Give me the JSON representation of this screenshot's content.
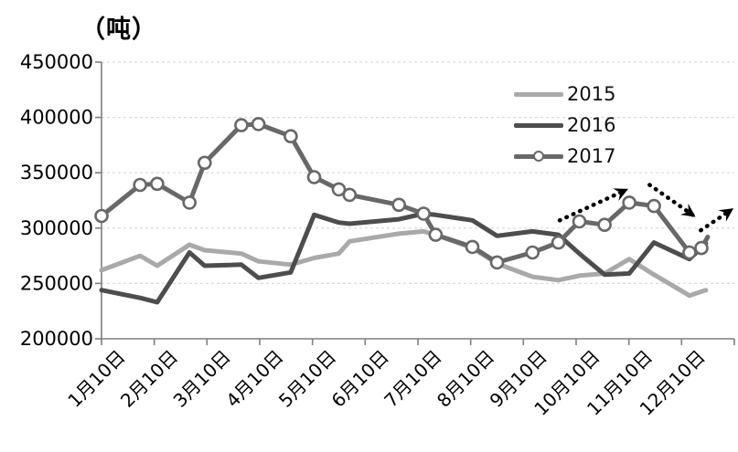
{
  "chart_data": {
    "type": "line",
    "title": "（吨）",
    "y_axis": {
      "min": 200000,
      "max": 450000,
      "ticks": [
        200000,
        250000,
        300000,
        350000,
        400000,
        450000
      ],
      "unit_label": "（吨）"
    },
    "x_axis": {
      "tick_labels": [
        "1月10日",
        "2月10日",
        "3月10日",
        "4月10日",
        "5月10日",
        "6月10日",
        "7月10日",
        "8月10日",
        "9月10日",
        "10月10日",
        "11月10日",
        "12月10日"
      ]
    },
    "grid": "horizontal-dashed",
    "legend": {
      "position": "upper-right",
      "entries": [
        "2015",
        "2016",
        "2017"
      ]
    },
    "colors": {
      "grid": "#d9d9d9",
      "axis": "#7f7f7f",
      "text": "#000000",
      "arrow": "#000000"
    },
    "series": [
      {
        "name": "2015",
        "color": "#a9a9a9",
        "marker": "none",
        "points": [
          [
            0,
            262000
          ],
          [
            0.061,
            275000
          ],
          [
            0.088,
            266000
          ],
          [
            0.139,
            285000
          ],
          [
            0.163,
            280000
          ],
          [
            0.221,
            277000
          ],
          [
            0.248,
            270000
          ],
          [
            0.299,
            267000
          ],
          [
            0.336,
            273000
          ],
          [
            0.375,
            277000
          ],
          [
            0.392,
            288000
          ],
          [
            0.47,
            295000
          ],
          [
            0.509,
            297000
          ],
          [
            0.528,
            294000
          ],
          [
            0.586,
            282000
          ],
          [
            0.625,
            268000
          ],
          [
            0.681,
            256000
          ],
          [
            0.722,
            253000
          ],
          [
            0.755,
            257000
          ],
          [
            0.795,
            259000
          ],
          [
            0.834,
            272000
          ],
          [
            0.873,
            258000
          ],
          [
            0.929,
            239000
          ],
          [
            0.955,
            244000
          ]
        ]
      },
      {
        "name": "2016",
        "color": "#4d4d4d",
        "marker": "none",
        "points": [
          [
            0,
            244000
          ],
          [
            0.061,
            237000
          ],
          [
            0.088,
            233000
          ],
          [
            0.139,
            278000
          ],
          [
            0.163,
            266000
          ],
          [
            0.221,
            267000
          ],
          [
            0.248,
            255000
          ],
          [
            0.299,
            260000
          ],
          [
            0.336,
            312000
          ],
          [
            0.375,
            305000
          ],
          [
            0.392,
            304000
          ],
          [
            0.47,
            308000
          ],
          [
            0.509,
            313000
          ],
          [
            0.528,
            312000
          ],
          [
            0.586,
            307000
          ],
          [
            0.625,
            293000
          ],
          [
            0.681,
            297000
          ],
          [
            0.722,
            294000
          ],
          [
            0.755,
            277000
          ],
          [
            0.795,
            258000
          ],
          [
            0.834,
            259000
          ],
          [
            0.873,
            287000
          ],
          [
            0.929,
            272000
          ],
          [
            0.955,
            286000
          ]
        ]
      },
      {
        "name": "2017",
        "color": "#686868",
        "marker": "circle",
        "trailing_stub": true,
        "points": [
          [
            0,
            311000
          ],
          [
            0.061,
            339000
          ],
          [
            0.088,
            340000
          ],
          [
            0.139,
            323000
          ],
          [
            0.163,
            359000
          ],
          [
            0.221,
            393000
          ],
          [
            0.248,
            394000
          ],
          [
            0.299,
            383000
          ],
          [
            0.336,
            346000
          ],
          [
            0.375,
            335000
          ],
          [
            0.392,
            330000
          ],
          [
            0.47,
            321000
          ],
          [
            0.509,
            313000
          ],
          [
            0.528,
            294000
          ],
          [
            0.586,
            283000
          ],
          [
            0.625,
            269000
          ],
          [
            0.681,
            278000
          ],
          [
            0.722,
            287000
          ],
          [
            0.755,
            306000
          ],
          [
            0.795,
            303000
          ],
          [
            0.834,
            323000
          ],
          [
            0.873,
            320000
          ],
          [
            0.929,
            278000
          ],
          [
            0.948,
            282000
          ],
          [
            0.958,
            292000
          ]
        ]
      }
    ],
    "annotations": {
      "style": "dotted-black-arrow",
      "arrows": [
        {
          "x1": 0.724,
          "v1": 307000,
          "x2": 0.827,
          "v2": 334000
        },
        {
          "x1": 0.866,
          "v1": 339000,
          "x2": 0.934,
          "v2": 312000
        },
        {
          "x1": 0.947,
          "v1": 298000,
          "x2": 0.994,
          "v2": 316000
        }
      ]
    }
  }
}
